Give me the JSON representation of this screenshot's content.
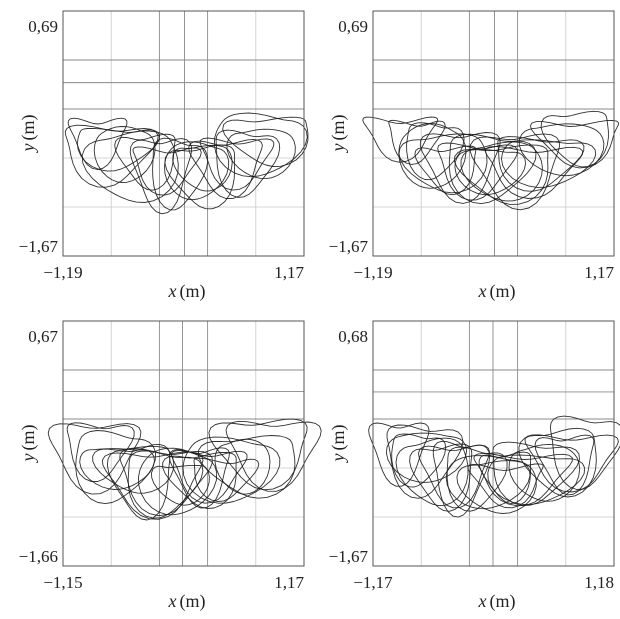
{
  "chart_data": [
    {
      "type": "line",
      "panel": "top-left",
      "title": "",
      "xlabel_var": "x",
      "xlabel_unit": "(m)",
      "ylabel_var": "y",
      "ylabel_unit": "(m)",
      "xlim": [
        -1.19,
        1.17
      ],
      "ylim": [
        -1.67,
        0.69
      ],
      "x_ticklabels": [
        "−1,19",
        "1,17"
      ],
      "y_ticklabels": [
        "0,69",
        "−1,67"
      ],
      "grid": true,
      "series": [
        {
          "values_description": "trajectory loops",
          "x": [
            -0.9,
            -0.6,
            -0.3,
            0.0,
            0.3,
            0.6,
            0.9
          ],
          "y": [
            -0.2,
            -0.5,
            -0.75,
            -0.85,
            -0.75,
            -0.5,
            -0.2
          ]
        }
      ]
    },
    {
      "type": "line",
      "panel": "top-right",
      "title": "",
      "xlabel_var": "x",
      "xlabel_unit": "(m)",
      "ylabel_var": "y",
      "ylabel_unit": "(m)",
      "xlim": [
        -1.19,
        1.17
      ],
      "ylim": [
        -1.67,
        0.69
      ],
      "x_ticklabels": [
        "−1,19",
        "1,17"
      ],
      "y_ticklabels": [
        "0,69",
        "−1,67"
      ],
      "grid": true,
      "series": [
        {
          "values_description": "trajectory loops",
          "x": [
            -0.9,
            -0.6,
            -0.3,
            0.0,
            0.3,
            0.6,
            0.9
          ],
          "y": [
            -0.2,
            -0.5,
            -0.75,
            -0.85,
            -0.75,
            -0.5,
            -0.2
          ]
        }
      ]
    },
    {
      "type": "line",
      "panel": "bottom-left",
      "title": "",
      "xlabel_var": "x",
      "xlabel_unit": "(m)",
      "ylabel_var": "y",
      "ylabel_unit": "(m)",
      "xlim": [
        -1.15,
        1.17
      ],
      "ylim": [
        -1.66,
        0.67
      ],
      "x_ticklabels": [
        "−1,15",
        "1,17"
      ],
      "y_ticklabels": [
        "0,67",
        "−1,66"
      ],
      "grid": true,
      "series": [
        {
          "values_description": "trajectory loops",
          "x": [
            -0.9,
            -0.6,
            -0.3,
            0.0,
            0.3,
            0.6,
            0.9
          ],
          "y": [
            -0.2,
            -0.5,
            -0.75,
            -0.85,
            -0.75,
            -0.5,
            -0.2
          ]
        }
      ]
    },
    {
      "type": "line",
      "panel": "bottom-right",
      "title": "",
      "xlabel_var": "x",
      "xlabel_unit": "(m)",
      "ylabel_var": "y",
      "ylabel_unit": "(m)",
      "xlim": [
        -1.17,
        1.18
      ],
      "ylim": [
        -1.67,
        0.68
      ],
      "x_ticklabels": [
        "−1,17",
        "1,18"
      ],
      "y_ticklabels": [
        "0,68",
        "−1,67"
      ],
      "grid": true,
      "series": [
        {
          "values_description": "trajectory loops",
          "x": [
            -0.9,
            -0.6,
            -0.3,
            0.0,
            0.3,
            0.6,
            0.9
          ],
          "y": [
            -0.2,
            -0.5,
            -0.75,
            -0.85,
            -0.75,
            -0.5,
            -0.2
          ]
        }
      ]
    }
  ]
}
